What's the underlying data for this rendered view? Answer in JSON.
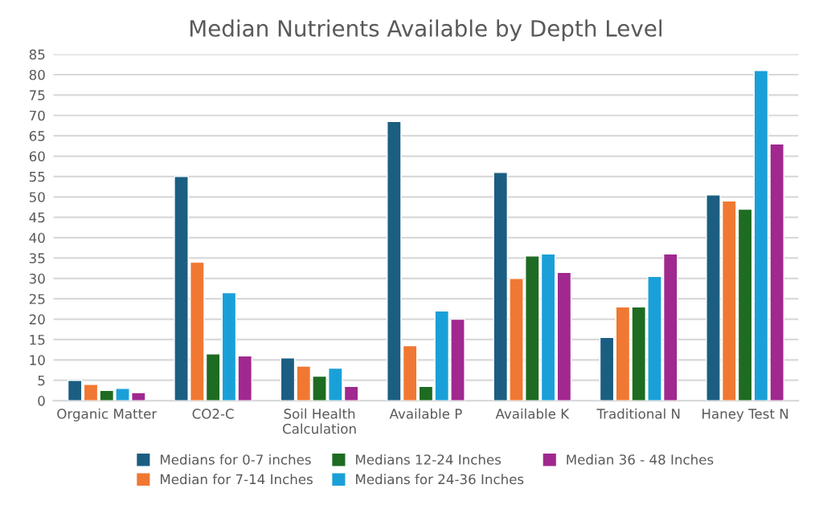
{
  "chart_data": {
    "type": "bar",
    "title": "Median Nutrients Available by Depth Level",
    "categories": [
      "Organic Matter",
      "CO2-C",
      "Soil Health\nCalculation",
      "Available P",
      "Available K",
      "Traditional N",
      "Haney Test N"
    ],
    "series": [
      {
        "name": "Medians for 0-7 inches",
        "color": "#1b5e82",
        "values": [
          5,
          55,
          10.5,
          68.5,
          56,
          15.5,
          50.5
        ]
      },
      {
        "name": "Median for 7-14 Inches",
        "color": "#f07832",
        "values": [
          4,
          34,
          8.5,
          13.5,
          30,
          23,
          49
        ]
      },
      {
        "name": "Medians 12-24 Inches",
        "color": "#1e6b22",
        "values": [
          2.5,
          11.5,
          6,
          3.5,
          35.5,
          23,
          47
        ]
      },
      {
        "name": "Medians for 24-36 Inches",
        "color": "#1aa0d8",
        "values": [
          3,
          26.5,
          8,
          22,
          36,
          30.5,
          81
        ]
      },
      {
        "name": "Median 36 - 48 Inches",
        "color": "#a0288f",
        "values": [
          2,
          11,
          3.5,
          20,
          31.5,
          36,
          63
        ]
      }
    ],
    "ylim": [
      0,
      85
    ],
    "yticks": [
      0,
      5,
      10,
      15,
      20,
      25,
      30,
      35,
      40,
      45,
      50,
      55,
      60,
      65,
      70,
      75,
      80,
      85
    ],
    "grid": "y",
    "legend": "bottom"
  }
}
